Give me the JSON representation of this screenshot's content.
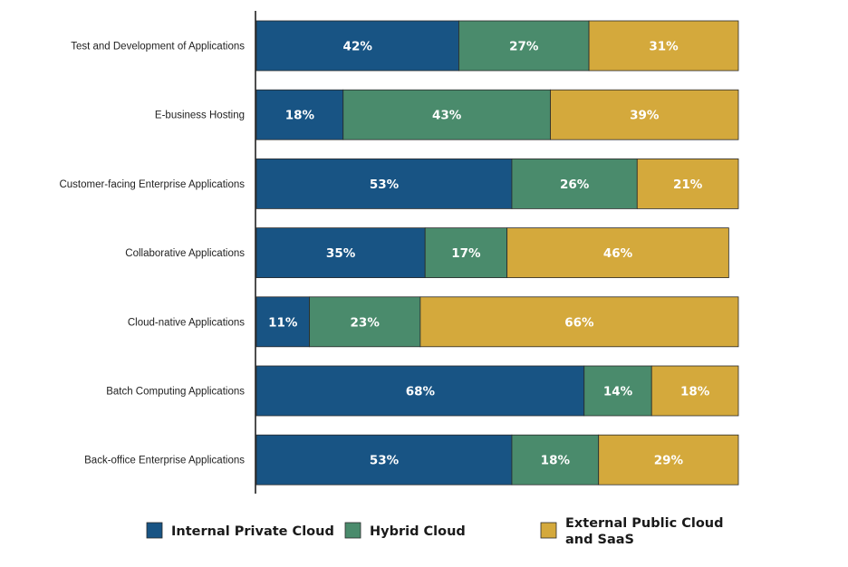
{
  "chart_data": {
    "type": "bar",
    "orientation": "horizontal",
    "stacked": true,
    "categories": [
      "Test and Development of Applications",
      "E-business Hosting",
      "Customer-facing Enterprise Applications",
      "Collaborative Applications",
      "Cloud-native Applications",
      "Batch Computing Applications",
      "Back-office Enterprise Applications"
    ],
    "series": [
      {
        "name": "Internal Private Cloud",
        "color": "#185484",
        "values": [
          42,
          18,
          53,
          35,
          11,
          68,
          53
        ],
        "labels": [
          "42%",
          "18%",
          "53%",
          "35%",
          "11%",
          "68%",
          "53%"
        ]
      },
      {
        "name": "Hybrid Cloud",
        "color": "#4a8b6c",
        "values": [
          27,
          43,
          26,
          17,
          23,
          14,
          18
        ],
        "labels": [
          "27%",
          "43%",
          "26%",
          "17%",
          "23%",
          "14%",
          "18%"
        ]
      },
      {
        "name": "External Public Cloud and SaaS",
        "color": "#d4a93c",
        "values": [
          31,
          39,
          21,
          46,
          66,
          18,
          29
        ],
        "labels": [
          "31%",
          "39%",
          "21%",
          "46%",
          "66%",
          "18%",
          "29%"
        ]
      }
    ],
    "legend": {
      "position": "bottom",
      "items": [
        {
          "lines": [
            "Internal Private Cloud"
          ]
        },
        {
          "lines": [
            "Hybrid Cloud"
          ]
        },
        {
          "lines": [
            "External Public Cloud",
            "and SaaS"
          ]
        }
      ]
    },
    "xlim": [
      0,
      100
    ],
    "grid": false
  }
}
